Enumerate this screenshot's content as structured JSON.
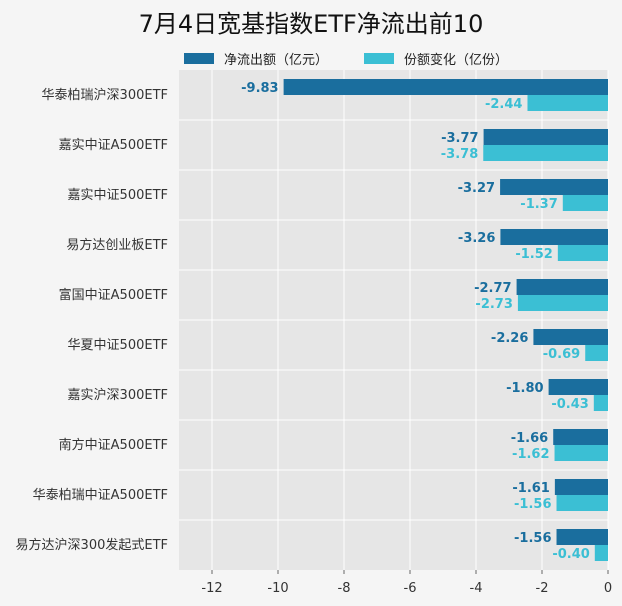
{
  "title": "7月4日宽基指数ETF净流出前10",
  "legend": [
    {
      "label": "净流出额（亿元）",
      "color": "#1a6e9e"
    },
    {
      "label": "份额变化（亿份）",
      "color": "#3bbfd4"
    }
  ],
  "chart_data": {
    "type": "bar",
    "orientation": "horizontal",
    "title": "7月4日宽基指数ETF净流出前10",
    "categories": [
      "华泰柏瑞沪深300ETF",
      "嘉实中证A500ETF",
      "嘉实中证500ETF",
      "易方达创业板ETF",
      "富国中证A500ETF",
      "华夏中证500ETF",
      "嘉实沪深300ETF",
      "南方中证A500ETF",
      "华泰柏瑞中证A500ETF",
      "易方达沪深300发起式ETF"
    ],
    "series": [
      {
        "name": "净流出额（亿元）",
        "color": "#1a6e9e",
        "values": [
          -9.83,
          -3.77,
          -3.27,
          -3.26,
          -2.77,
          -2.26,
          -1.8,
          -1.66,
          -1.61,
          -1.56
        ],
        "labels": [
          "-9.83",
          "-3.77",
          "-3.27",
          "-3.26",
          "-2.77",
          "-2.26",
          "-1.80",
          "-1.66",
          "-1.61",
          "-1.56"
        ]
      },
      {
        "name": "份额变化（亿份）",
        "color": "#3bbfd4",
        "values": [
          -2.44,
          -3.78,
          -1.37,
          -1.52,
          -2.73,
          -0.69,
          -0.43,
          -1.62,
          -1.56,
          -0.4
        ],
        "labels": [
          "-2.44",
          "-3.78",
          "-1.37",
          "-1.52",
          "-2.73",
          "-0.69",
          "-0.43",
          "-1.62",
          "-1.56",
          "-0.40"
        ]
      }
    ],
    "xlim": [
      -13,
      0
    ],
    "xticks": [
      -12,
      -10,
      -8,
      -6,
      -4,
      -2,
      0
    ],
    "xtick_labels": [
      "-12",
      "-10",
      "-8",
      "-6",
      "-4",
      "-2",
      "0"
    ],
    "grid": true,
    "legend_position": "top"
  }
}
